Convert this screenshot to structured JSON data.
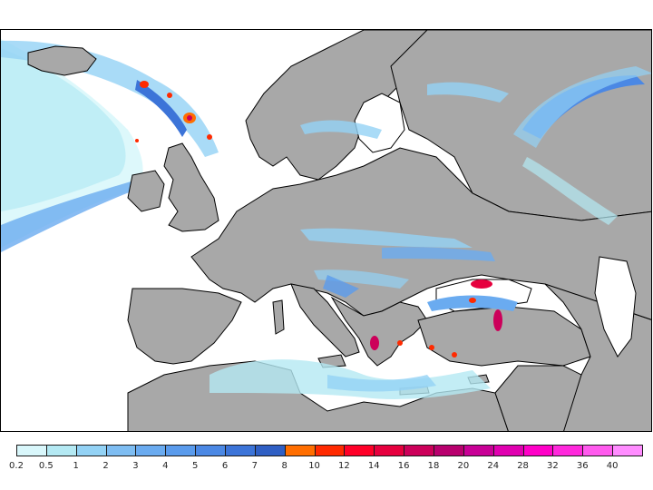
{
  "map": {
    "land_color": "#a8a8a8",
    "sea_color": "#ffffff",
    "border_color": "#000000"
  },
  "legend": {
    "labels": [
      "0.2",
      "0.5",
      "1",
      "2",
      "3",
      "4",
      "5",
      "6",
      "7",
      "8",
      "10",
      "12",
      "14",
      "16",
      "18",
      "20",
      "24",
      "28",
      "32",
      "36",
      "40"
    ],
    "colors": [
      "#d9f7fb",
      "#b4e9f3",
      "#93d2f5",
      "#7ebdf2",
      "#6aabf0",
      "#5a9bec",
      "#4b88e4",
      "#3c74d8",
      "#2f5fc4",
      "#ff6e00",
      "#ff2a00",
      "#ff0028",
      "#e6003e",
      "#cc005a",
      "#b8006e",
      "#c80096",
      "#e000b0",
      "#ff00c8",
      "#ff28dc",
      "#ff5aee",
      "#ff8cff"
    ]
  }
}
